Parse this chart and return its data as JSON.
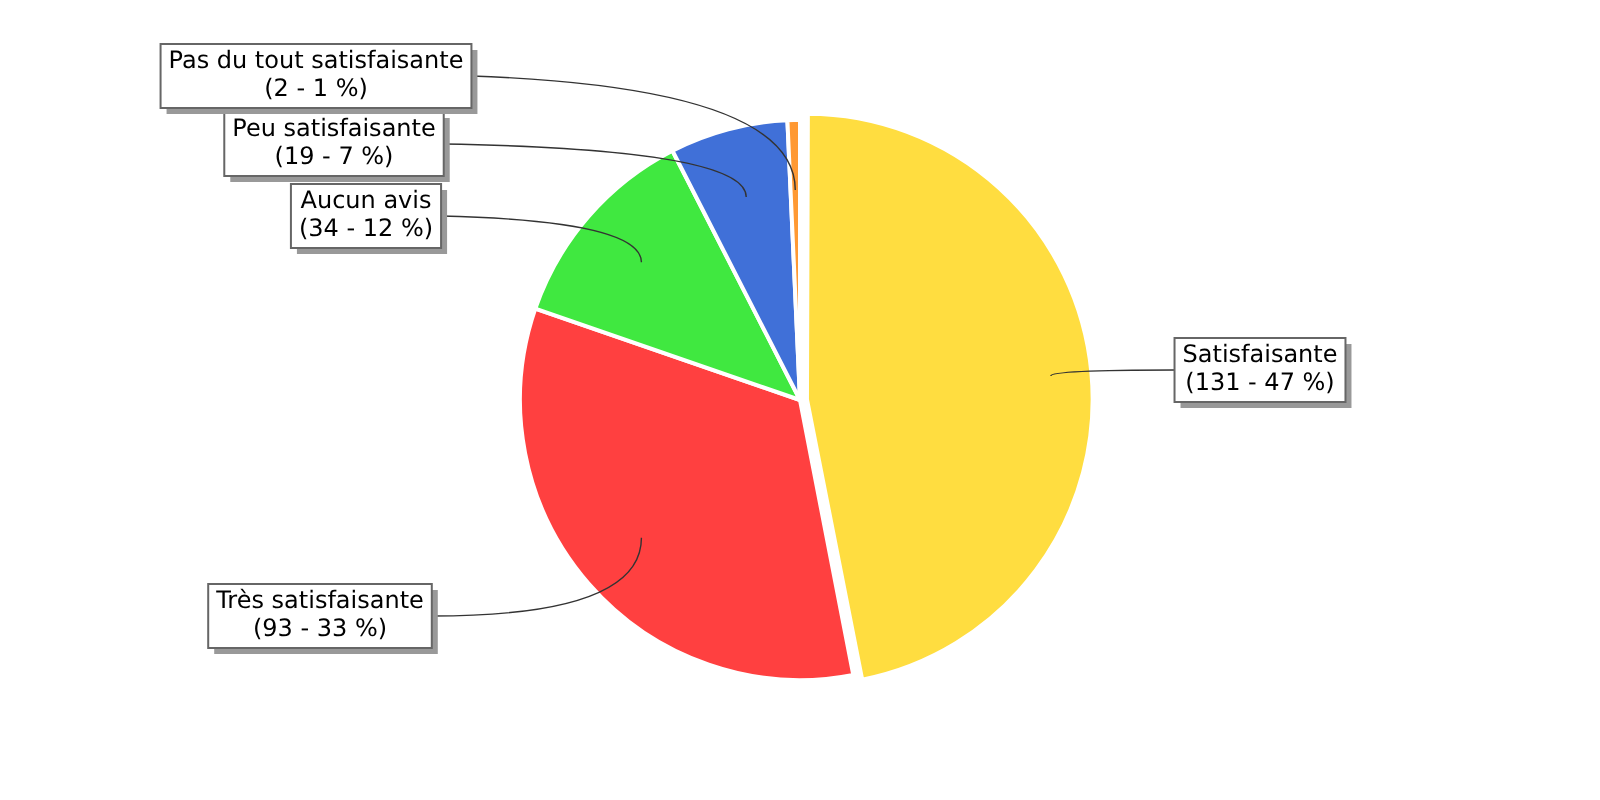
{
  "chart_data": {
    "type": "pie",
    "categories": [
      "Satisfaisante",
      "Très satisfaisante",
      "Aucun avis",
      "Peu satisfaisante",
      "Pas du tout satisfaisante"
    ],
    "values": [
      131,
      93,
      34,
      19,
      2
    ],
    "value_labels": [
      "(131 - 47 %)",
      "(93 - 33 %)",
      "(34 - 12 %)",
      "(19 - 7 %)",
      "(2 - 1 %)"
    ],
    "colors": [
      "#ffdd40",
      "#ff4040",
      "#40e840",
      "#4070d8",
      "#ff9933"
    ],
    "legend": false
  }
}
